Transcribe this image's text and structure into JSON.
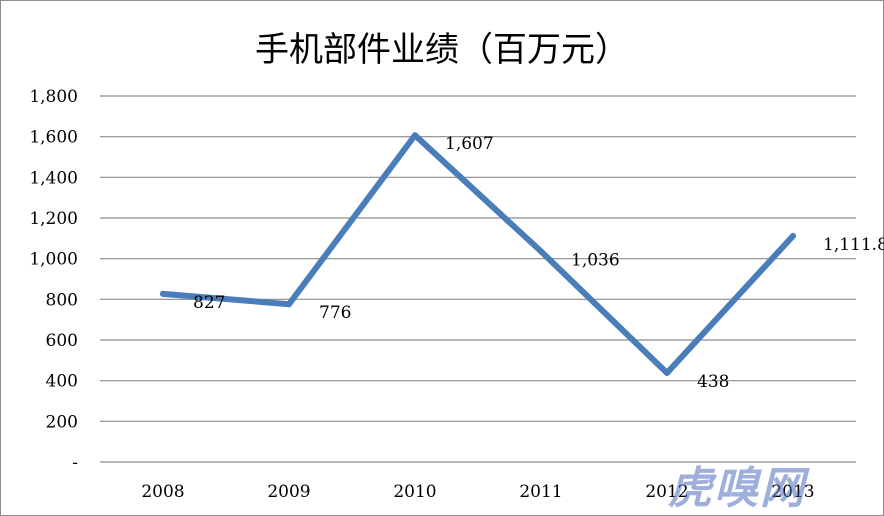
{
  "chart_data": {
    "type": "line",
    "title": "手机部件业绩（百万元）",
    "categories": [
      "2008",
      "2009",
      "2010",
      "2011",
      "2012",
      "2013"
    ],
    "series": [
      {
        "values": [
          827,
          776,
          1607,
          1036,
          438,
          1111.8
        ]
      }
    ],
    "data_labels": [
      "827",
      "776",
      "1,607",
      "1,036",
      "438",
      "1,111.8"
    ],
    "y_ticks": [
      0,
      200,
      400,
      600,
      800,
      1000,
      1200,
      1400,
      1600,
      1800
    ],
    "y_tick_labels": [
      "-",
      "200",
      "400",
      "600",
      "800",
      "1,000",
      "1,200",
      "1,400",
      "1,600",
      "1,800"
    ],
    "ylim": [
      0,
      1800
    ],
    "grid": true,
    "line_color": "#4a7ebb"
  },
  "watermark": "虎嗅网"
}
